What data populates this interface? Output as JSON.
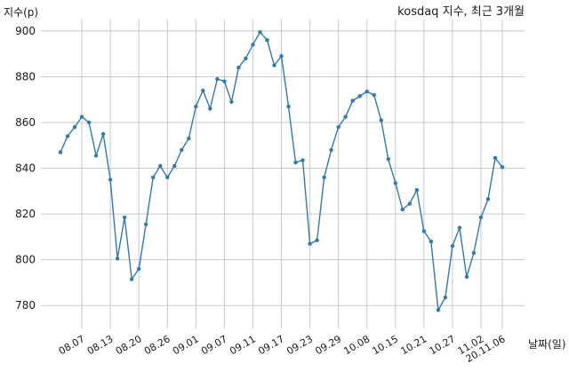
{
  "chart_data": {
    "type": "line",
    "title": "kosdaq 지수, 최근 3개월",
    "xlabel": "날짜(일)",
    "ylabel": "지수(p)",
    "ylim": [
      770,
      905
    ],
    "yticks": [
      780,
      800,
      820,
      840,
      860,
      880,
      900
    ],
    "grid": true,
    "line_color": "#2f7bb0",
    "xtick_labels": [
      "08.07",
      "08.13",
      "08.20",
      "08.26",
      "09.01",
      "09.07",
      "09.11",
      "09.17",
      "09.23",
      "09.29",
      "10.08",
      "10.15",
      "10.21",
      "10.27",
      "11.02",
      "20.11.06"
    ],
    "xtick_index": [
      3,
      7,
      11,
      15,
      19,
      23,
      27,
      31,
      35,
      39,
      43,
      47,
      51,
      55,
      59,
      62
    ],
    "series": [
      {
        "values": [
          847,
          854,
          858,
          862.5,
          860,
          845.5,
          855,
          835,
          800.5,
          818.5,
          791.5,
          796,
          815.5,
          836,
          841,
          836,
          841,
          848,
          853,
          867,
          874,
          866,
          879,
          878,
          869,
          884,
          888,
          894,
          899.5,
          896,
          885,
          889,
          867,
          842.5,
          843.5,
          807,
          808.5,
          836,
          848,
          858,
          862.5,
          869.5,
          871.5,
          873.5,
          872,
          861,
          844,
          833.5,
          822,
          824.5,
          830.5,
          812.5,
          808,
          778,
          783.5,
          806,
          814,
          792.5,
          803,
          818.5,
          826.5,
          844.5,
          840.5
        ]
      }
    ]
  }
}
